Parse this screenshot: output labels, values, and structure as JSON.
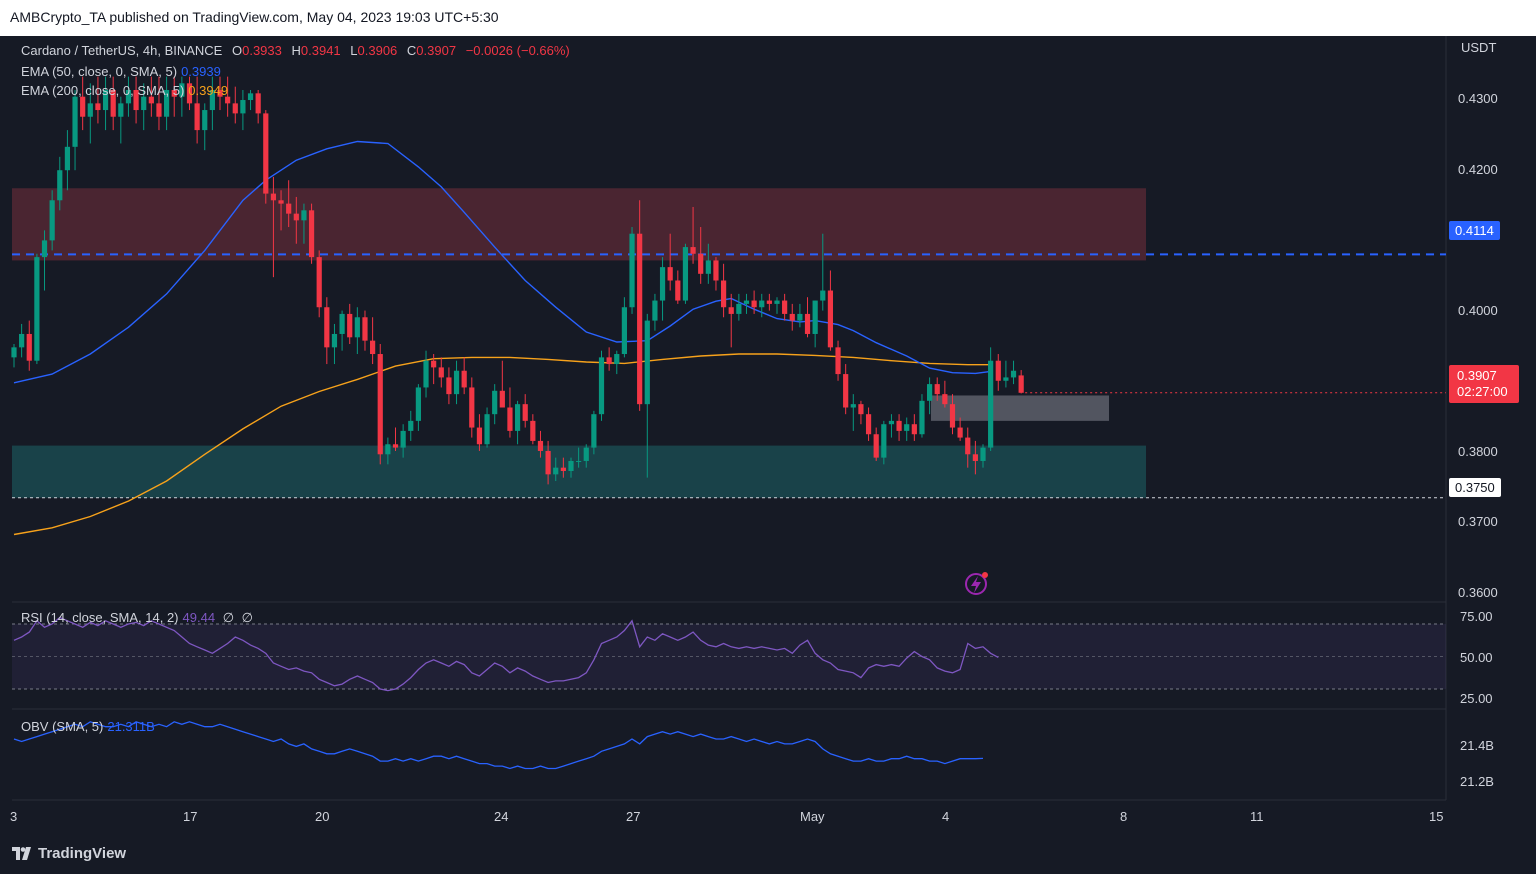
{
  "header": {
    "publisher_line": "AMBCrypto_TA published on TradingView.com, May 04, 2023 19:03 UTC+5:30"
  },
  "legend": {
    "symbol": "Cardano / TetherUS, 4h, BINANCE",
    "open_label": "O",
    "open": "0.3933",
    "high_label": "H",
    "high": "0.3941",
    "low_label": "L",
    "low": "0.3906",
    "close_label": "C",
    "close": "0.3907",
    "change": "−0.0026 (−0.66%)",
    "ema50_label": "EMA (50, close, 0, SMA, 5)",
    "ema50_value": "0.3939",
    "ema200_label": "EMA (200, close, 0, SMA, 5)",
    "ema200_value": "0.3949",
    "rsi_label": "RSI (14, close, SMA, 14, 2)",
    "rsi_value": "49.44",
    "rsi_extra1": "∅",
    "rsi_extra2": "∅",
    "obv_label": "OBV (SMA, 5)",
    "obv_value": "21.311B"
  },
  "price_axis": {
    "currency": "USDT",
    "ticks": [
      "0.4300",
      "0.4200",
      "0.4000",
      "0.3800",
      "0.3700",
      "0.3600"
    ],
    "resistance_tag": "0.4114",
    "current_price_tag": "0.3907",
    "countdown_tag": "02:27:00",
    "support_tag": "0.3750"
  },
  "rsi_axis": {
    "ticks": [
      "75.00",
      "50.00",
      "25.00"
    ]
  },
  "obv_axis": {
    "ticks": [
      "21.4B",
      "21.2B"
    ]
  },
  "time_axis": {
    "ticks": [
      "3",
      "17",
      "20",
      "24",
      "27",
      "May",
      "4",
      "8",
      "11",
      "15"
    ]
  },
  "footer": {
    "brand": "TradingView"
  },
  "colors": {
    "background": "#161a25",
    "up_candle": "#089981",
    "down_candle": "#f23645",
    "ema50": "#2962ff",
    "ema200": "#f7a21b",
    "resistance_zone": "#5c2a35",
    "support_zone": "#1a4a50",
    "rsi_line": "#7e57c2",
    "obv_line": "#2962ff",
    "resistance_line": "#2962ff"
  },
  "chart_data": {
    "type": "candlestick",
    "symbol": "Cardano / TetherUS",
    "timeframe": "4h",
    "exchange": "BINANCE",
    "price_range": [
      0.36,
      0.436
    ],
    "levels": {
      "resistance": 0.4114,
      "support": 0.375
    },
    "zones": [
      {
        "kind": "resistance",
        "from": 0.4105,
        "to": 0.4213
      },
      {
        "kind": "support",
        "from": 0.375,
        "to": 0.3828
      },
      {
        "kind": "order_block",
        "from": 0.3865,
        "to": 0.3903
      }
    ],
    "candles": [
      [
        0.396,
        0.398,
        0.3945,
        0.3975
      ],
      [
        0.3975,
        0.401,
        0.396,
        0.3995
      ],
      [
        0.3995,
        0.4015,
        0.394,
        0.3955
      ],
      [
        0.3955,
        0.4115,
        0.395,
        0.411
      ],
      [
        0.411,
        0.415,
        0.406,
        0.4135
      ],
      [
        0.4135,
        0.421,
        0.412,
        0.4195
      ],
      [
        0.4195,
        0.426,
        0.418,
        0.424
      ],
      [
        0.424,
        0.43,
        0.421,
        0.4275
      ],
      [
        0.4275,
        0.436,
        0.424,
        0.435
      ],
      [
        0.435,
        0.438,
        0.43,
        0.432
      ],
      [
        0.432,
        0.437,
        0.428,
        0.434
      ],
      [
        0.434,
        0.438,
        0.431,
        0.433
      ],
      [
        0.433,
        0.438,
        0.43,
        0.436
      ],
      [
        0.436,
        0.438,
        0.43,
        0.432
      ],
      [
        0.432,
        0.435,
        0.428,
        0.434
      ],
      [
        0.434,
        0.438,
        0.432,
        0.436
      ],
      [
        0.436,
        0.438,
        0.431,
        0.433
      ],
      [
        0.433,
        0.437,
        0.43,
        0.435
      ],
      [
        0.435,
        0.438,
        0.432,
        0.434
      ],
      [
        0.434,
        0.438,
        0.43,
        0.432
      ],
      [
        0.432,
        0.438,
        0.43,
        0.436
      ],
      [
        0.436,
        0.438,
        0.432,
        0.435
      ],
      [
        0.435,
        0.438,
        0.432,
        0.437
      ],
      [
        0.437,
        0.438,
        0.433,
        0.434
      ],
      [
        0.434,
        0.438,
        0.428,
        0.43
      ],
      [
        0.43,
        0.434,
        0.427,
        0.433
      ],
      [
        0.433,
        0.438,
        0.43,
        0.436
      ],
      [
        0.436,
        0.438,
        0.433,
        0.435
      ],
      [
        0.435,
        0.438,
        0.432,
        0.434
      ],
      [
        0.434,
        0.4365,
        0.431,
        0.4325
      ],
      [
        0.4325,
        0.436,
        0.43,
        0.4345
      ],
      [
        0.4345,
        0.436,
        0.433,
        0.4355
      ],
      [
        0.4355,
        0.436,
        0.431,
        0.4325
      ],
      [
        0.4325,
        0.433,
        0.419,
        0.4205
      ],
      [
        0.4205,
        0.423,
        0.408,
        0.4195
      ],
      [
        0.4195,
        0.421,
        0.415,
        0.419
      ],
      [
        0.419,
        0.4225,
        0.4155,
        0.4175
      ],
      [
        0.4175,
        0.42,
        0.413,
        0.4165
      ],
      [
        0.4165,
        0.419,
        0.413,
        0.418
      ],
      [
        0.418,
        0.419,
        0.41,
        0.411
      ],
      [
        0.411,
        0.412,
        0.402,
        0.4035
      ],
      [
        0.4035,
        0.405,
        0.395,
        0.3975
      ],
      [
        0.3975,
        0.401,
        0.395,
        0.3995
      ],
      [
        0.3995,
        0.403,
        0.397,
        0.4025
      ],
      [
        0.4025,
        0.404,
        0.398,
        0.399
      ],
      [
        0.399,
        0.4035,
        0.3965,
        0.402
      ],
      [
        0.402,
        0.403,
        0.397,
        0.3985
      ],
      [
        0.3985,
        0.402,
        0.395,
        0.3965
      ],
      [
        0.3965,
        0.398,
        0.38,
        0.3815
      ],
      [
        0.3815,
        0.384,
        0.38,
        0.383
      ],
      [
        0.383,
        0.3855,
        0.382,
        0.3825
      ],
      [
        0.3825,
        0.386,
        0.381,
        0.385
      ],
      [
        0.385,
        0.388,
        0.3835,
        0.3865
      ],
      [
        0.3865,
        0.392,
        0.385,
        0.3915
      ],
      [
        0.3915,
        0.397,
        0.39,
        0.3955
      ],
      [
        0.3955,
        0.3965,
        0.392,
        0.3945
      ],
      [
        0.3945,
        0.396,
        0.3915,
        0.393
      ],
      [
        0.393,
        0.3945,
        0.389,
        0.3905
      ],
      [
        0.3905,
        0.3955,
        0.389,
        0.394
      ],
      [
        0.394,
        0.396,
        0.3905,
        0.3915
      ],
      [
        0.3915,
        0.393,
        0.384,
        0.3855
      ],
      [
        0.3855,
        0.3875,
        0.382,
        0.383
      ],
      [
        0.383,
        0.3885,
        0.3825,
        0.3875
      ],
      [
        0.3875,
        0.392,
        0.386,
        0.391
      ],
      [
        0.391,
        0.3955,
        0.389,
        0.3885
      ],
      [
        0.3885,
        0.3915,
        0.384,
        0.385
      ],
      [
        0.385,
        0.3895,
        0.383,
        0.389
      ],
      [
        0.389,
        0.3905,
        0.3855,
        0.3865
      ],
      [
        0.3865,
        0.3875,
        0.383,
        0.3835
      ],
      [
        0.3835,
        0.385,
        0.381,
        0.382
      ],
      [
        0.382,
        0.3835,
        0.377,
        0.3785
      ],
      [
        0.3785,
        0.381,
        0.3775,
        0.3795
      ],
      [
        0.3795,
        0.381,
        0.378,
        0.379
      ],
      [
        0.379,
        0.381,
        0.378,
        0.3805
      ],
      [
        0.3805,
        0.3825,
        0.3795,
        0.3805
      ],
      [
        0.3805,
        0.383,
        0.3795,
        0.3825
      ],
      [
        0.3825,
        0.388,
        0.3815,
        0.3875
      ],
      [
        0.3875,
        0.397,
        0.3865,
        0.396
      ],
      [
        0.396,
        0.3975,
        0.394,
        0.395
      ],
      [
        0.395,
        0.397,
        0.3935,
        0.3965
      ],
      [
        0.3965,
        0.405,
        0.396,
        0.4035
      ],
      [
        0.4035,
        0.4155,
        0.4025,
        0.4145
      ],
      [
        0.4145,
        0.4195,
        0.388,
        0.389
      ],
      [
        0.389,
        0.4025,
        0.378,
        0.4015
      ],
      [
        0.4015,
        0.4055,
        0.4,
        0.4045
      ],
      [
        0.4045,
        0.411,
        0.4015,
        0.4095
      ],
      [
        0.4095,
        0.4145,
        0.406,
        0.4075
      ],
      [
        0.4075,
        0.409,
        0.404,
        0.4045
      ],
      [
        0.4045,
        0.413,
        0.404,
        0.4125
      ],
      [
        0.4125,
        0.4185,
        0.41,
        0.4115
      ],
      [
        0.4115,
        0.4155,
        0.407,
        0.4085
      ],
      [
        0.4085,
        0.413,
        0.407,
        0.4105
      ],
      [
        0.4105,
        0.411,
        0.406,
        0.4075
      ],
      [
        0.4075,
        0.41,
        0.402,
        0.4035
      ],
      [
        0.4035,
        0.4055,
        0.3975,
        0.4025
      ],
      [
        0.4025,
        0.4055,
        0.4015,
        0.404
      ],
      [
        0.404,
        0.4055,
        0.4025,
        0.4045
      ],
      [
        0.4045,
        0.406,
        0.4025,
        0.4035
      ],
      [
        0.4035,
        0.4055,
        0.402,
        0.4045
      ],
      [
        0.4045,
        0.4055,
        0.403,
        0.404
      ],
      [
        0.404,
        0.405,
        0.4025,
        0.4045
      ],
      [
        0.4045,
        0.4055,
        0.4015,
        0.4025
      ],
      [
        0.4025,
        0.404,
        0.4,
        0.4015
      ],
      [
        0.4015,
        0.404,
        0.4005,
        0.4025
      ],
      [
        0.4025,
        0.405,
        0.399,
        0.3995
      ],
      [
        0.3995,
        0.4045,
        0.3975,
        0.4045
      ],
      [
        0.4045,
        0.4145,
        0.403,
        0.406
      ],
      [
        0.406,
        0.409,
        0.397,
        0.3975
      ],
      [
        0.3975,
        0.3985,
        0.3925,
        0.3935
      ],
      [
        0.3935,
        0.395,
        0.3875,
        0.3885
      ],
      [
        0.3885,
        0.3905,
        0.385,
        0.389
      ],
      [
        0.389,
        0.3895,
        0.386,
        0.3875
      ],
      [
        0.3875,
        0.3885,
        0.3835,
        0.3845
      ],
      [
        0.3845,
        0.3855,
        0.3805,
        0.381
      ],
      [
        0.381,
        0.3865,
        0.38,
        0.386
      ],
      [
        0.386,
        0.3875,
        0.384,
        0.3865
      ],
      [
        0.3865,
        0.3875,
        0.3835,
        0.385
      ],
      [
        0.385,
        0.387,
        0.3835,
        0.386
      ],
      [
        0.386,
        0.3875,
        0.3835,
        0.3845
      ],
      [
        0.3845,
        0.3905,
        0.384,
        0.3895
      ],
      [
        0.3895,
        0.393,
        0.3875,
        0.392
      ],
      [
        0.392,
        0.393,
        0.3895,
        0.3905
      ],
      [
        0.3905,
        0.3925,
        0.3885,
        0.389
      ],
      [
        0.389,
        0.3905,
        0.3845,
        0.3855
      ],
      [
        0.3855,
        0.387,
        0.3835,
        0.384
      ],
      [
        0.384,
        0.3855,
        0.3795,
        0.3815
      ],
      [
        0.3815,
        0.3835,
        0.3785,
        0.3805
      ],
      [
        0.3805,
        0.383,
        0.3795,
        0.3825
      ],
      [
        0.3825,
        0.3975,
        0.382,
        0.3955
      ],
      [
        0.3955,
        0.3965,
        0.391,
        0.3925
      ],
      [
        0.3925,
        0.3955,
        0.3915,
        0.393
      ],
      [
        0.393,
        0.3955,
        0.392,
        0.394
      ],
      [
        0.3933,
        0.3941,
        0.3906,
        0.3907
      ]
    ],
    "ema50": [
      [
        0,
        0.3922
      ],
      [
        5,
        0.3935
      ],
      [
        10,
        0.3965
      ],
      [
        15,
        0.4005
      ],
      [
        20,
        0.4055
      ],
      [
        25,
        0.412
      ],
      [
        30,
        0.4195
      ],
      [
        33,
        0.4225
      ],
      [
        37,
        0.4255
      ],
      [
        41,
        0.4272
      ],
      [
        45,
        0.4283
      ],
      [
        49,
        0.428
      ],
      [
        53,
        0.4245
      ],
      [
        56,
        0.4215
      ],
      [
        59,
        0.4177
      ],
      [
        63,
        0.4125
      ],
      [
        67,
        0.4075
      ],
      [
        71,
        0.4035
      ],
      [
        75,
        0.3998
      ],
      [
        79,
        0.3983
      ],
      [
        83,
        0.3985
      ],
      [
        86,
        0.4007
      ],
      [
        89,
        0.4032
      ],
      [
        92,
        0.4044
      ],
      [
        94,
        0.4048
      ],
      [
        97,
        0.4032
      ],
      [
        100,
        0.4018
      ],
      [
        103,
        0.4013
      ],
      [
        105,
        0.4015
      ],
      [
        108,
        0.4009
      ],
      [
        110,
        0.4
      ],
      [
        113,
        0.3982
      ],
      [
        117,
        0.3962
      ],
      [
        120,
        0.3944
      ],
      [
        123,
        0.3937
      ],
      [
        126,
        0.3936
      ],
      [
        128,
        0.3939
      ]
    ],
    "ema200": [
      [
        0,
        0.3695
      ],
      [
        5,
        0.3705
      ],
      [
        10,
        0.3722
      ],
      [
        15,
        0.3745
      ],
      [
        20,
        0.3775
      ],
      [
        25,
        0.3815
      ],
      [
        30,
        0.3853
      ],
      [
        35,
        0.3887
      ],
      [
        40,
        0.3909
      ],
      [
        45,
        0.3927
      ],
      [
        50,
        0.3947
      ],
      [
        55,
        0.3958
      ],
      [
        60,
        0.396
      ],
      [
        65,
        0.396
      ],
      [
        70,
        0.3957
      ],
      [
        75,
        0.3953
      ],
      [
        80,
        0.3951
      ],
      [
        85,
        0.3957
      ],
      [
        90,
        0.3962
      ],
      [
        95,
        0.3965
      ],
      [
        100,
        0.3965
      ],
      [
        105,
        0.3963
      ],
      [
        110,
        0.396
      ],
      [
        115,
        0.3955
      ],
      [
        120,
        0.3951
      ],
      [
        125,
        0.3949
      ],
      [
        128,
        0.3949
      ]
    ],
    "rsi": [
      60,
      62,
      65,
      72,
      68,
      70,
      74,
      72,
      70,
      68,
      71,
      69,
      72,
      70,
      68,
      70,
      71,
      69,
      72,
      70,
      68,
      66,
      62,
      58,
      56,
      54,
      52,
      55,
      58,
      62,
      60,
      57,
      55,
      52,
      46,
      44,
      42,
      43,
      41,
      40,
      36,
      34,
      32,
      33,
      36,
      38,
      36,
      34,
      30,
      29,
      30,
      33,
      37,
      42,
      46,
      48,
      46,
      44,
      47,
      45,
      40,
      38,
      42,
      46,
      44,
      40,
      43,
      41,
      38,
      36,
      34,
      35,
      35,
      36,
      37,
      40,
      48,
      58,
      60,
      62,
      66,
      72,
      56,
      62,
      60,
      64,
      62,
      60,
      62,
      65,
      60,
      57,
      56,
      58,
      56,
      55,
      56,
      55,
      56,
      55,
      54,
      55,
      52,
      57,
      60,
      52,
      48,
      46,
      42,
      41,
      40,
      37,
      43,
      45,
      44,
      45,
      44,
      49,
      53,
      50,
      48,
      43,
      41,
      40,
      42,
      58,
      55,
      56,
      52,
      49.44
    ],
    "rsi_range": [
      15,
      85
    ],
    "rsi_levels": [
      70,
      50,
      30
    ],
    "obv": [
      21.39,
      21.38,
      21.39,
      21.4,
      21.41,
      21.42,
      21.43,
      21.44,
      21.45,
      21.44,
      21.46,
      21.45,
      21.44,
      21.44,
      21.45,
      21.44,
      21.46,
      21.45,
      21.44,
      21.45,
      21.44,
      21.46,
      21.45,
      21.46,
      21.45,
      21.44,
      21.44,
      21.45,
      21.44,
      21.43,
      21.42,
      21.41,
      21.4,
      21.39,
      21.38,
      21.39,
      21.37,
      21.36,
      21.37,
      21.35,
      21.34,
      21.33,
      21.33,
      21.34,
      21.35,
      21.34,
      21.33,
      21.32,
      21.3,
      21.3,
      21.31,
      21.3,
      21.31,
      21.3,
      21.31,
      21.32,
      21.32,
      21.31,
      21.32,
      21.31,
      21.3,
      21.29,
      21.29,
      21.28,
      21.28,
      21.27,
      21.28,
      21.27,
      21.27,
      21.28,
      21.27,
      21.27,
      21.28,
      21.29,
      21.3,
      21.31,
      21.32,
      21.34,
      21.35,
      21.36,
      21.37,
      21.39,
      21.37,
      21.4,
      21.41,
      21.42,
      21.41,
      21.42,
      21.41,
      21.4,
      21.41,
      21.4,
      21.39,
      21.39,
      21.4,
      21.39,
      21.38,
      21.39,
      21.38,
      21.37,
      21.38,
      21.37,
      21.37,
      21.38,
      21.39,
      21.38,
      21.35,
      21.33,
      21.32,
      21.31,
      21.3,
      21.3,
      21.31,
      21.3,
      21.3,
      21.31,
      21.31,
      21.32,
      21.31,
      21.31,
      21.3,
      21.3,
      21.29,
      21.3,
      21.31,
      21.31,
      21.31,
      21.311
    ],
    "obv_range": [
      21.15,
      21.5
    ],
    "obv_ticks": [
      21.4,
      21.2
    ]
  }
}
